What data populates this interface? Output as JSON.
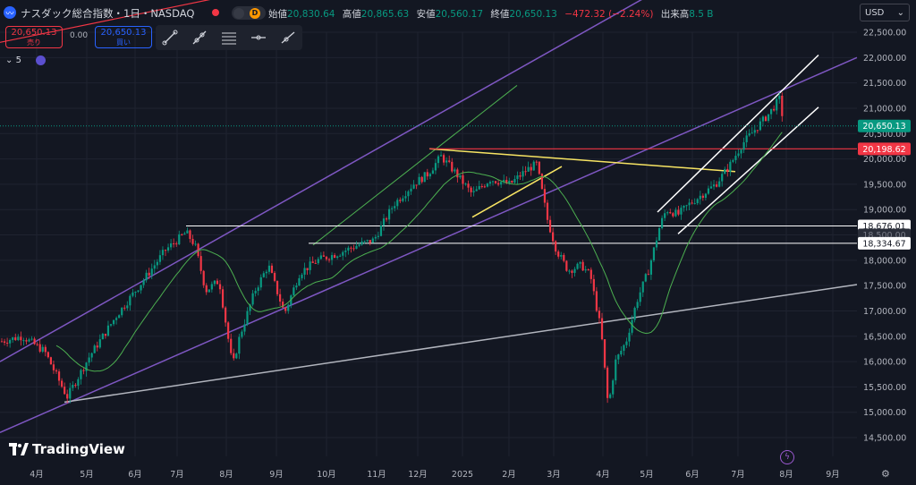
{
  "header": {
    "symbol_title": "ナスダック総合指数・1日・NASDAQ",
    "badge_letter": "D",
    "ohlc": {
      "open_label": "始値",
      "open": "20,830.64",
      "high_label": "高値",
      "high": "20,865.63",
      "low_label": "安値",
      "low": "20,560.17",
      "close_label": "終値",
      "close": "20,650.13",
      "change": "−472.32 (−2.24%)",
      "volume_label": "出来高",
      "volume": "8.5 B"
    }
  },
  "trade": {
    "sell_price": "20,650.13",
    "sell_label": "売り",
    "spread": "0.00",
    "buy_price": "20,650.13",
    "buy_label": "買い"
  },
  "indicators": {
    "collapse_label": "5"
  },
  "currency": {
    "label": "USD"
  },
  "branding": {
    "logo_text": "TradingView"
  },
  "colors": {
    "background": "#131722",
    "up": "#089981",
    "down": "#f23645",
    "sma": "#4caf50",
    "channel": "#7e57c2",
    "support": "#b2b5be",
    "white_line": "#ffffff",
    "yellow_line": "#f7e463",
    "green_trend": "#4caf50",
    "red_level": "#f23645"
  },
  "chart_data": {
    "type": "candlestick",
    "x_labels": [
      "4月",
      "5月",
      "6月",
      "7月",
      "8月",
      "9月",
      "10月",
      "11月",
      "12月",
      "2025",
      "2月",
      "3月",
      "4月",
      "5月",
      "6月",
      "7月",
      "8月",
      "9月"
    ],
    "y_ticks": [
      "22,500.00",
      "22,000.00",
      "21,500.00",
      "21,000.00",
      "20,500.00",
      "20,000.00",
      "19,500.00",
      "19,000.00",
      "18,500.00",
      "18,000.00",
      "17,500.00",
      "17,000.00",
      "16,500.00",
      "16,000.00",
      "15,500.00",
      "15,000.00",
      "14,500.00"
    ],
    "ylim": [
      14500,
      22500
    ],
    "price_tags": [
      {
        "label": "20,650.13",
        "value": 20650.13,
        "style": "current"
      },
      {
        "label": "20,198.62",
        "value": 20198.62,
        "style": "red"
      },
      {
        "label": "18,676.01",
        "value": 18676.01,
        "style": "white"
      },
      {
        "label": "18,500.00",
        "value": 18500,
        "style": "dim"
      },
      {
        "label": "18,334.67",
        "value": 18334.67,
        "style": "white"
      }
    ],
    "key_points": [
      {
        "x": "2024-04-19",
        "low": 15282
      },
      {
        "x": "2024-07-10",
        "high": 18671
      },
      {
        "x": "2024-08-05",
        "low": 15708
      },
      {
        "x": "2024-12-16",
        "high": 20204
      },
      {
        "x": "2025-02-19",
        "high": 20118
      },
      {
        "x": "2025-04-07",
        "low": 14784
      },
      {
        "x": "2025-07-31",
        "high": 21457
      },
      {
        "x": "2025-08-01",
        "close": 20650.13
      }
    ]
  }
}
